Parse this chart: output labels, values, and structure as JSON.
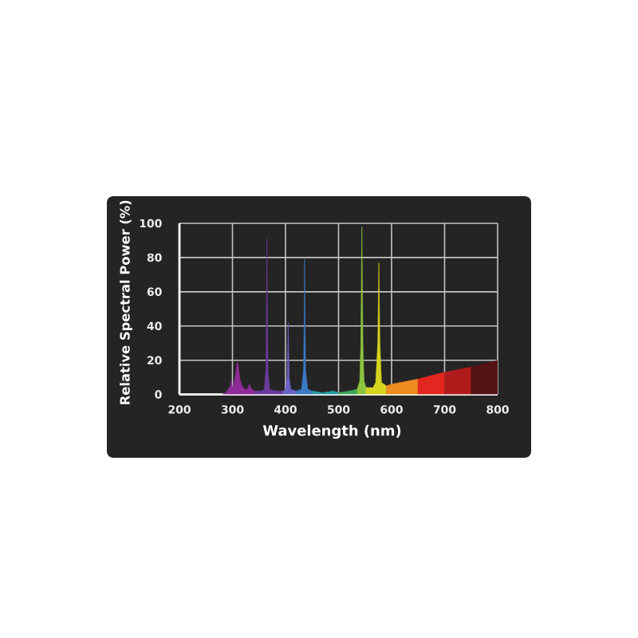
{
  "chart_data": {
    "type": "area",
    "xlabel": "Wavelength (nm)",
    "ylabel": "Relative Spectral Power (%)",
    "xlim": [
      200,
      800
    ],
    "ylim": [
      0,
      100
    ],
    "xticks": [
      200,
      300,
      400,
      500,
      600,
      700,
      800
    ],
    "yticks": [
      0,
      20,
      40,
      60,
      80,
      100
    ],
    "grid": true,
    "series": [
      {
        "color": "#8e2b97",
        "x": [
          280,
          287,
          292,
          296,
          298,
          300,
          303,
          306,
          309,
          311,
          314,
          318,
          323,
          328,
          332,
          336,
          342
        ],
        "values": [
          0,
          1,
          3,
          5,
          8,
          4,
          7,
          12,
          19,
          17,
          9,
          5,
          3,
          3,
          6,
          3,
          2
        ]
      },
      {
        "color": "#6b3a9e",
        "x": [
          342,
          355,
          360,
          363,
          364,
          365,
          366,
          367,
          370,
          380,
          395
        ],
        "values": [
          2,
          2,
          3,
          14,
          45,
          91,
          45,
          14,
          3,
          2,
          2
        ]
      },
      {
        "color": "#6a62c6",
        "x": [
          395,
          400,
          403,
          404,
          405,
          406,
          407,
          410,
          420
        ],
        "values": [
          2,
          3,
          10,
          25,
          42,
          25,
          10,
          3,
          2
        ]
      },
      {
        "color": "#3b78c4",
        "x": [
          420,
          430,
          434,
          435,
          436,
          437,
          438,
          442,
          450
        ],
        "values": [
          2,
          3,
          14,
          40,
          79,
          40,
          14,
          3,
          2
        ]
      },
      {
        "color": "#2a9ea6",
        "x": [
          450,
          470,
          490,
          500
        ],
        "values": [
          2,
          1,
          2,
          1
        ]
      },
      {
        "color": "#3aa85a",
        "x": [
          500,
          520,
          535
        ],
        "values": [
          1,
          2,
          3
        ]
      },
      {
        "color": "#8cc43e",
        "x": [
          535,
          540,
          542,
          544,
          546,
          548,
          552
        ],
        "values": [
          3,
          8,
          30,
          98,
          30,
          8,
          4
        ]
      },
      {
        "color": "#d5d41f",
        "x": [
          552,
          565,
          570,
          574,
          576,
          578,
          581,
          590
        ],
        "values": [
          4,
          4,
          7,
          30,
          77,
          30,
          7,
          5
        ]
      },
      {
        "color": "#ee8a1f",
        "x": [
          590,
          600,
          650
        ],
        "values": [
          5,
          6,
          9
        ]
      },
      {
        "color": "#e3261f",
        "x": [
          650,
          700
        ],
        "values": [
          9,
          13
        ]
      },
      {
        "color": "#b01c1c",
        "x": [
          700,
          750
        ],
        "values": [
          13,
          16
        ]
      },
      {
        "color": "#551414",
        "x": [
          750,
          790,
          800
        ],
        "values": [
          16,
          19,
          20
        ]
      }
    ]
  }
}
